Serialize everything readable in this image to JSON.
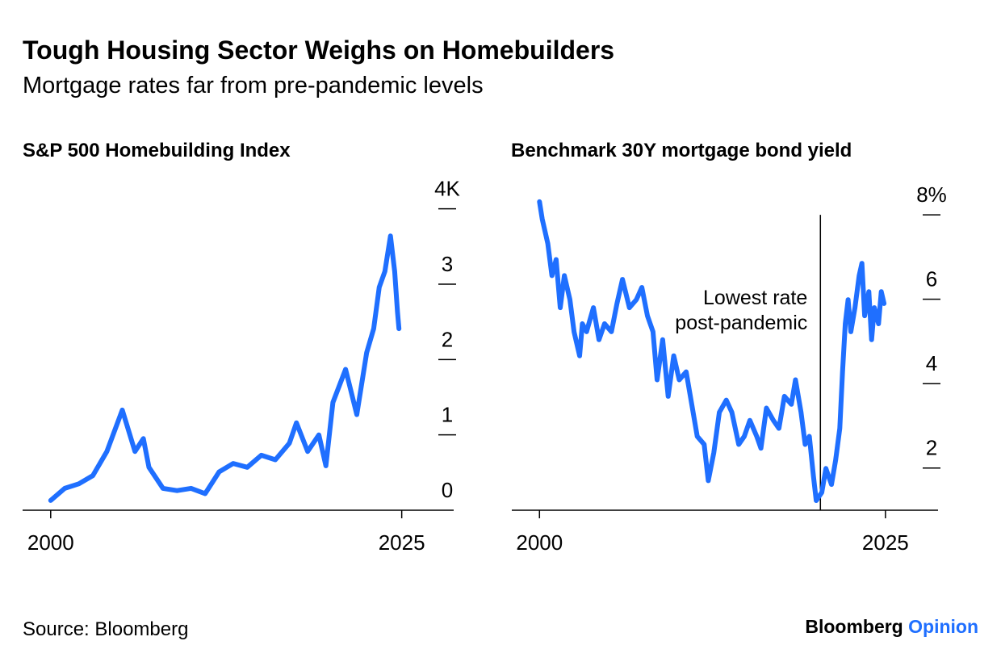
{
  "title": "Tough Housing Sector Weighs on Homebuilders",
  "subtitle": "Mortgage rates far from pre-pandemic levels",
  "source": "Source: Bloomberg",
  "brand": {
    "name": "Bloomberg",
    "product": "Opinion"
  },
  "chart_data": [
    {
      "type": "line",
      "title": "S&P 500 Homebuilding Index",
      "color": "#1f6fff",
      "x": [
        2000,
        2001,
        2002,
        2003,
        2004,
        2005.1,
        2006,
        2006.6,
        2007,
        2008,
        2009,
        2010,
        2011,
        2012,
        2013,
        2014,
        2015,
        2016,
        2017,
        2017.5,
        2018.3,
        2019.1,
        2019.6,
        2020.1,
        2021,
        2021.8,
        2022.5,
        2023,
        2023.4,
        2023.8,
        2024.2,
        2024.5,
        2024.7,
        2024.8
      ],
      "values": [
        0.13,
        0.29,
        0.35,
        0.46,
        0.78,
        1.33,
        0.78,
        0.95,
        0.57,
        0.29,
        0.26,
        0.29,
        0.22,
        0.51,
        0.62,
        0.57,
        0.73,
        0.67,
        0.89,
        1.16,
        0.78,
        1.0,
        0.59,
        1.43,
        1.87,
        1.27,
        2.09,
        2.41,
        2.96,
        3.17,
        3.64,
        3.17,
        2.63,
        2.41
      ],
      "xlim": [
        1998,
        2028.7
      ],
      "xticks": [
        2000,
        2025
      ],
      "ylim": [
        0,
        4.2
      ],
      "yticks": [
        0,
        1,
        2,
        3,
        {
          "value": 4,
          "label": "4K"
        }
      ]
    },
    {
      "type": "line",
      "title": "Benchmark 30Y mortgage bond yield",
      "color": "#1f6fff",
      "x": [
        2000,
        2000.2,
        2000.6,
        2000.9,
        2001.2,
        2001.5,
        2001.8,
        2002.2,
        2002.5,
        2002.9,
        2003.1,
        2003.4,
        2003.9,
        2004.3,
        2004.7,
        2005.2,
        2005.6,
        2006,
        2006.5,
        2007,
        2007.4,
        2007.8,
        2008.2,
        2008.5,
        2008.9,
        2009.3,
        2009.7,
        2010.1,
        2010.6,
        2011,
        2011.4,
        2011.9,
        2012.2,
        2012.6,
        2013,
        2013.5,
        2013.9,
        2014.4,
        2014.8,
        2015.2,
        2015.7,
        2016,
        2016.4,
        2016.9,
        2017.3,
        2017.7,
        2018.2,
        2018.5,
        2018.9,
        2019.2,
        2019.5,
        2019.8,
        2020,
        2020.4,
        2020.7,
        2021.1,
        2021.4,
        2021.7,
        2021.9,
        2022.1,
        2022.3,
        2022.5,
        2022.8,
        2023.1,
        2023.3,
        2023.5,
        2023.8,
        2024,
        2024.2,
        2024.5,
        2024.7,
        2024.9
      ],
      "values": [
        8.31,
        7.9,
        7.32,
        6.56,
        6.94,
        5.8,
        6.56,
        5.99,
        5.23,
        4.66,
        5.42,
        5.23,
        5.8,
        5.04,
        5.42,
        5.23,
        5.9,
        6.47,
        5.8,
        5.99,
        6.28,
        5.61,
        5.23,
        4.09,
        5.04,
        3.7,
        4.66,
        4.09,
        4.28,
        3.51,
        2.75,
        2.56,
        1.7,
        2.37,
        3.32,
        3.61,
        3.32,
        2.56,
        2.75,
        3.13,
        2.75,
        2.47,
        3.42,
        3.13,
        2.94,
        3.7,
        3.51,
        4.09,
        3.32,
        2.56,
        2.75,
        1.8,
        1.23,
        1.42,
        1.99,
        1.61,
        2.18,
        2.94,
        4.28,
        5.42,
        5.99,
        5.23,
        5.8,
        6.56,
        6.85,
        5.61,
        6.18,
        5.04,
        5.8,
        5.42,
        6.18,
        5.9
      ],
      "xlim": [
        1998,
        2028.8
      ],
      "xticks": [
        2000,
        2025
      ],
      "ylim": [
        1,
        8.5
      ],
      "yticks": [
        2,
        4,
        6,
        {
          "value": 8,
          "label": "8%"
        }
      ],
      "annotation": {
        "text": [
          "Lowest rate",
          "post-pandemic"
        ],
        "x": 2020.3
      }
    }
  ]
}
